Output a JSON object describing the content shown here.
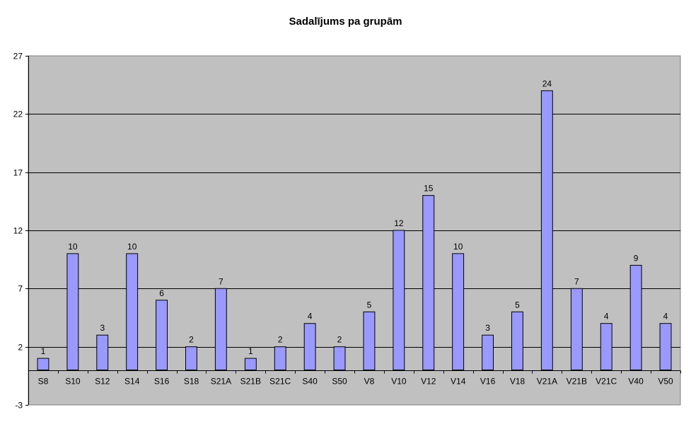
{
  "chart_data": {
    "type": "bar",
    "title": "Sadalījums pa grupām",
    "xlabel": "",
    "ylabel": "",
    "categories": [
      "S8",
      "S10",
      "S12",
      "S14",
      "S16",
      "S18",
      "S21A",
      "S21B",
      "S21C",
      "S40",
      "S50",
      "V8",
      "V10",
      "V12",
      "V14",
      "V16",
      "V18",
      "V21A",
      "V21B",
      "V21C",
      "V40",
      "V50"
    ],
    "values": [
      1,
      10,
      3,
      10,
      6,
      2,
      7,
      1,
      2,
      4,
      2,
      5,
      12,
      15,
      10,
      3,
      5,
      24,
      7,
      4,
      9,
      4
    ],
    "ylim": [
      -3,
      27
    ],
    "yticks": [
      -3,
      2,
      7,
      12,
      17,
      22,
      27
    ],
    "grid": true,
    "legend": "none",
    "colors": {
      "bar_fill": "#9999ff",
      "bar_stroke": "#000000",
      "plot_bg": "#c0c0c0",
      "grid": "#000000"
    }
  }
}
